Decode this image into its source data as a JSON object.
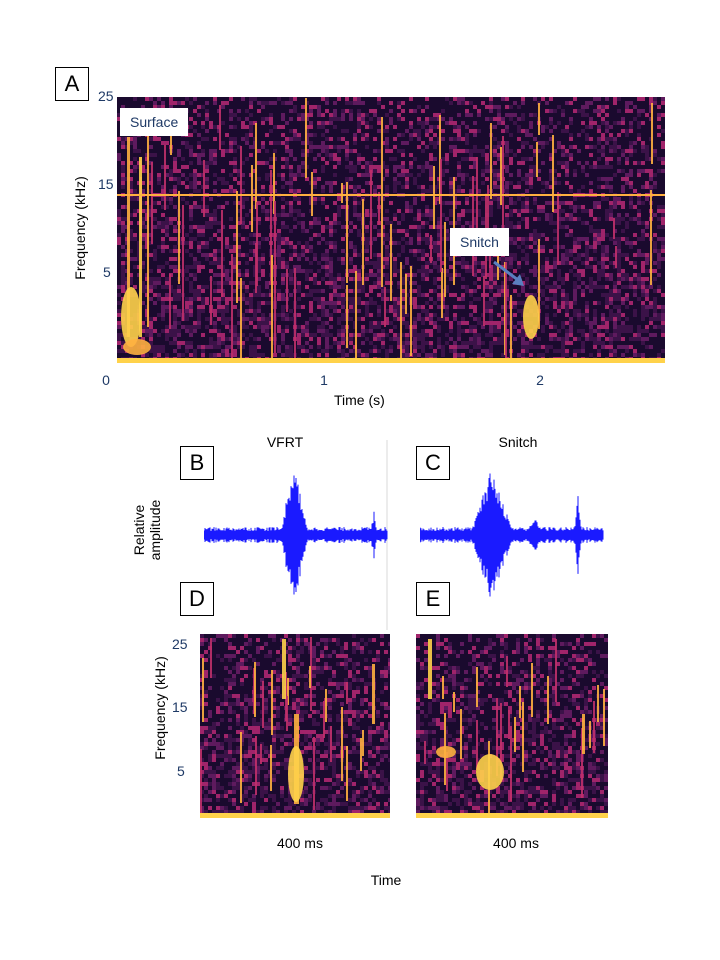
{
  "panels": {
    "A": {
      "label": "A",
      "yticks": [
        "25",
        "15",
        "5"
      ],
      "xticks": [
        "0",
        "1",
        "2"
      ],
      "xlabel": "Time (s)",
      "ylabel": "Frequency  (kHz)",
      "callout_surface": "Surface",
      "callout_snitch": "Snitch"
    },
    "B": {
      "label": "B",
      "title": "VFRT"
    },
    "C": {
      "label": "C",
      "title": "Snitch"
    },
    "D": {
      "label": "D",
      "yticks": [
        "25",
        "15",
        "5"
      ],
      "duration": "400 ms"
    },
    "E": {
      "label": "E",
      "duration": "400 ms"
    }
  },
  "waveform_ylabel_line1": "Relative",
  "waveform_ylabel_line2": "amplitude",
  "lower_ylabel": "Frequency  (kHz)",
  "lower_xlabel": "Time",
  "colors": {
    "spectrogram_bg": "#1a0a2e",
    "spectrogram_mid": "#7a1a5a",
    "spectrogram_hot": "#ffd24a",
    "waveform": "#1a1aff",
    "axis_text": "#1f3a66"
  }
}
